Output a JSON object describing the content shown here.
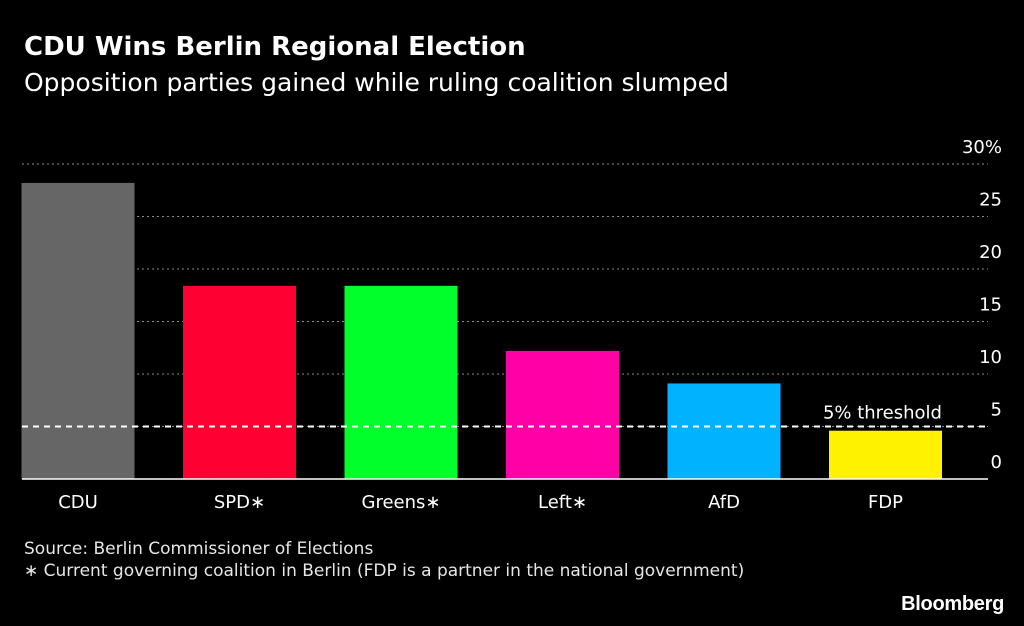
{
  "header": {
    "title": "CDU Wins Berlin Regional Election",
    "subtitle": "Opposition parties gained while ruling coalition slumped"
  },
  "chart_data": {
    "type": "bar",
    "title": "CDU Wins Berlin Regional Election",
    "subtitle": "Opposition parties gained while ruling coalition slumped",
    "categories": [
      "CDU",
      "SPD∗",
      "Greens∗",
      "Left∗",
      "AfD",
      "FDP"
    ],
    "values": [
      28.2,
      18.4,
      18.4,
      12.2,
      9.1,
      4.6
    ],
    "colors": [
      "#666666",
      "#ff0033",
      "#00ff2b",
      "#ff00a6",
      "#00b2ff",
      "#fff200"
    ],
    "ylim": [
      0,
      30
    ],
    "yticks": [
      0,
      5,
      10,
      15,
      20,
      25,
      30
    ],
    "ytick_labels": [
      "0",
      "5",
      "10",
      "15",
      "20",
      "25",
      "30%"
    ],
    "y_axis_side": "right",
    "grid": true,
    "threshold": {
      "value": 5,
      "label": "5% threshold"
    }
  },
  "footer": {
    "source": "Source: Berlin Commissioner of Elections",
    "note": "∗ Current governing coalition in Berlin (FDP is a partner in the national government)"
  },
  "brand": "Bloomberg",
  "colors": {
    "background": "#000000",
    "text": "#ffffff",
    "grid": "#8a8a8a"
  }
}
